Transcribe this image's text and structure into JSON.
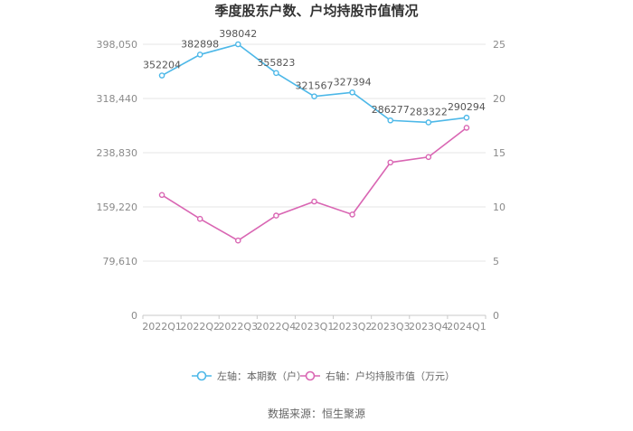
{
  "chart_data": {
    "type": "line",
    "title": "季度股东户数、户均持股市值情况",
    "source": "数据来源：恒生聚源",
    "categories": [
      "2022Q1",
      "2022Q2",
      "2022Q3",
      "2022Q4",
      "2023Q1",
      "2023Q2",
      "2023Q3",
      "2023Q4",
      "2024Q1"
    ],
    "left_axis": {
      "min": 0,
      "max": 398050,
      "ticks": [
        0,
        79610,
        159220,
        238830,
        318440,
        398050
      ],
      "tick_labels": [
        "0",
        "79,610",
        "159,220",
        "238,830",
        "318,440",
        "398,050"
      ]
    },
    "right_axis": {
      "min": 0,
      "max": 25,
      "ticks": [
        0,
        5,
        10,
        15,
        20,
        25
      ],
      "tick_labels": [
        "0",
        "5",
        "10",
        "15",
        "20",
        "25"
      ]
    },
    "grid": true,
    "legend_position": "bottom",
    "series": [
      {
        "name": "左轴：本期数（户）",
        "axis": "left",
        "color": "#4db8e8",
        "values": [
          352204,
          382898,
          398042,
          355823,
          321567,
          327394,
          286277,
          283322,
          290294
        ],
        "labels": [
          "352204",
          "382898",
          "398042",
          "355823",
          "321567",
          "327394",
          "286277",
          "283322",
          "290294"
        ]
      },
      {
        "name": "右轴：户均持股市值（万元）",
        "axis": "right",
        "color": "#d966b3",
        "values": [
          11.1,
          8.9,
          6.9,
          9.2,
          10.5,
          9.3,
          14.1,
          14.6,
          17.3
        ]
      }
    ]
  }
}
